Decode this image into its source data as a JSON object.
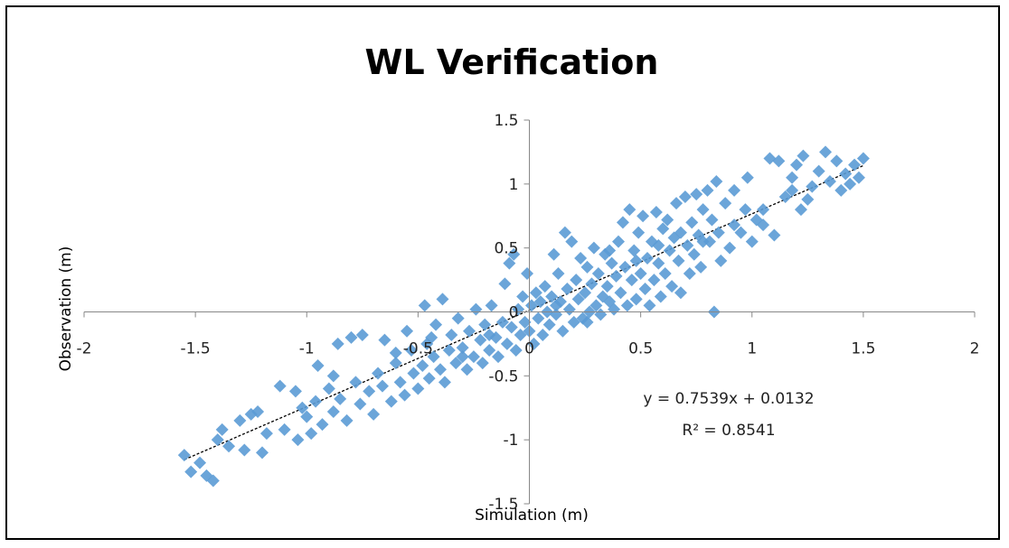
{
  "chart_data": {
    "type": "scatter",
    "title": "WL Verification",
    "xlabel": "Simulation (m)",
    "ylabel": "Observation (m)",
    "xlim": [
      -2,
      2
    ],
    "ylim": [
      -1.5,
      1.5
    ],
    "x_ticks": [
      "-2",
      "-1.5",
      "-1",
      "-0.5",
      "0",
      "0.5",
      "1",
      "1.5",
      "2"
    ],
    "y_ticks": [
      "-1.5",
      "-1",
      "-0.5",
      "0",
      "0.5",
      "1",
      "1.5"
    ],
    "grid": false,
    "marker_color": "#5b9bd5",
    "trendline": {
      "slope": 0.7539,
      "intercept": 0.0132,
      "equation": "y = 0.7539x + 0.0132",
      "r2": "R² = 0.8541"
    },
    "points": [
      [
        -1.55,
        -1.12
      ],
      [
        -1.52,
        -1.25
      ],
      [
        -1.48,
        -1.18
      ],
      [
        -1.45,
        -1.28
      ],
      [
        -1.42,
        -1.32
      ],
      [
        -1.4,
        -1.0
      ],
      [
        -1.38,
        -0.92
      ],
      [
        -1.35,
        -1.05
      ],
      [
        -1.3,
        -0.85
      ],
      [
        -1.28,
        -1.08
      ],
      [
        -1.22,
        -0.78
      ],
      [
        -1.2,
        -1.1
      ],
      [
        -1.18,
        -0.95
      ],
      [
        -1.12,
        -0.58
      ],
      [
        -1.1,
        -0.92
      ],
      [
        -1.05,
        -0.62
      ],
      [
        -1.04,
        -1.0
      ],
      [
        -1.02,
        -0.75
      ],
      [
        -1.0,
        -0.82
      ],
      [
        -0.98,
        -0.95
      ],
      [
        -0.96,
        -0.7
      ],
      [
        -0.95,
        -0.42
      ],
      [
        -0.93,
        -0.88
      ],
      [
        -0.9,
        -0.6
      ],
      [
        -0.88,
        -0.78
      ],
      [
        -0.86,
        -0.25
      ],
      [
        -0.85,
        -0.68
      ],
      [
        -0.82,
        -0.85
      ],
      [
        -0.8,
        -0.2
      ],
      [
        -0.78,
        -0.55
      ],
      [
        -0.76,
        -0.72
      ],
      [
        -0.75,
        -0.18
      ],
      [
        -0.72,
        -0.62
      ],
      [
        -0.7,
        -0.8
      ],
      [
        -0.68,
        -0.48
      ],
      [
        -0.66,
        -0.58
      ],
      [
        -0.65,
        -0.22
      ],
      [
        -0.62,
        -0.7
      ],
      [
        -0.6,
        -0.4
      ],
      [
        -0.58,
        -0.55
      ],
      [
        -0.56,
        -0.65
      ],
      [
        -0.55,
        -0.15
      ],
      [
        -0.53,
        -0.3
      ],
      [
        -0.52,
        -0.48
      ],
      [
        -0.5,
        -0.6
      ],
      [
        -0.48,
        -0.42
      ],
      [
        -0.47,
        0.05
      ],
      [
        -0.46,
        -0.25
      ],
      [
        -0.45,
        -0.52
      ],
      [
        -0.43,
        -0.35
      ],
      [
        -0.42,
        -0.1
      ],
      [
        -0.4,
        -0.45
      ],
      [
        -0.39,
        0.1
      ],
      [
        -0.38,
        -0.55
      ],
      [
        -0.36,
        -0.3
      ],
      [
        -0.35,
        -0.18
      ],
      [
        -0.33,
        -0.4
      ],
      [
        -0.32,
        -0.05
      ],
      [
        -0.3,
        -0.28
      ],
      [
        -0.28,
        -0.45
      ],
      [
        -0.27,
        -0.15
      ],
      [
        -0.25,
        -0.35
      ],
      [
        -0.24,
        0.02
      ],
      [
        -0.22,
        -0.22
      ],
      [
        -0.21,
        -0.4
      ],
      [
        -0.2,
        -0.1
      ],
      [
        -0.18,
        -0.3
      ],
      [
        -0.17,
        0.05
      ],
      [
        -0.15,
        -0.2
      ],
      [
        -0.14,
        -0.35
      ],
      [
        -0.12,
        -0.08
      ],
      [
        -0.11,
        0.22
      ],
      [
        -0.1,
        -0.25
      ],
      [
        -0.09,
        0.38
      ],
      [
        -0.08,
        -0.12
      ],
      [
        -0.07,
        0.45
      ],
      [
        -0.06,
        -0.3
      ],
      [
        -0.05,
        0.02
      ],
      [
        -0.04,
        -0.18
      ],
      [
        -0.03,
        0.12
      ],
      [
        -0.02,
        -0.08
      ],
      [
        -0.01,
        0.3
      ],
      [
        0.0,
        -0.15
      ],
      [
        0.01,
        0.05
      ],
      [
        0.02,
        -0.25
      ],
      [
        0.03,
        0.15
      ],
      [
        0.04,
        -0.05
      ],
      [
        0.05,
        0.08
      ],
      [
        0.06,
        -0.18
      ],
      [
        0.07,
        0.2
      ],
      [
        0.08,
        0.0
      ],
      [
        0.09,
        -0.1
      ],
      [
        0.1,
        0.12
      ],
      [
        0.11,
        0.45
      ],
      [
        0.12,
        -0.02
      ],
      [
        0.13,
        0.3
      ],
      [
        0.14,
        0.08
      ],
      [
        0.15,
        -0.15
      ],
      [
        0.16,
        0.62
      ],
      [
        0.17,
        0.18
      ],
      [
        0.18,
        0.02
      ],
      [
        0.19,
        0.55
      ],
      [
        0.2,
        -0.08
      ],
      [
        0.21,
        0.25
      ],
      [
        0.22,
        0.1
      ],
      [
        0.23,
        0.42
      ],
      [
        0.24,
        -0.05
      ],
      [
        0.25,
        0.15
      ],
      [
        0.26,
        0.35
      ],
      [
        0.27,
        0.0
      ],
      [
        0.28,
        0.22
      ],
      [
        0.29,
        0.5
      ],
      [
        0.3,
        0.05
      ],
      [
        0.31,
        0.3
      ],
      [
        0.32,
        -0.02
      ],
      [
        0.33,
        0.12
      ],
      [
        0.34,
        0.45
      ],
      [
        0.35,
        0.2
      ],
      [
        0.36,
        0.08
      ],
      [
        0.37,
        0.38
      ],
      [
        0.38,
        0.02
      ],
      [
        0.39,
        0.28
      ],
      [
        0.4,
        0.55
      ],
      [
        0.41,
        0.15
      ],
      [
        0.42,
        0.7
      ],
      [
        0.43,
        0.35
      ],
      [
        0.44,
        0.05
      ],
      [
        0.45,
        0.8
      ],
      [
        0.46,
        0.25
      ],
      [
        0.47,
        0.48
      ],
      [
        0.48,
        0.1
      ],
      [
        0.49,
        0.62
      ],
      [
        0.5,
        0.3
      ],
      [
        0.51,
        0.75
      ],
      [
        0.52,
        0.18
      ],
      [
        0.53,
        0.42
      ],
      [
        0.54,
        0.05
      ],
      [
        0.55,
        0.55
      ],
      [
        0.56,
        0.25
      ],
      [
        0.57,
        0.78
      ],
      [
        0.58,
        0.38
      ],
      [
        0.59,
        0.12
      ],
      [
        0.6,
        0.65
      ],
      [
        0.61,
        0.3
      ],
      [
        0.62,
        0.72
      ],
      [
        0.63,
        0.48
      ],
      [
        0.64,
        0.2
      ],
      [
        0.65,
        0.58
      ],
      [
        0.66,
        0.85
      ],
      [
        0.67,
        0.4
      ],
      [
        0.68,
        0.15
      ],
      [
        0.7,
        0.9
      ],
      [
        0.71,
        0.52
      ],
      [
        0.72,
        0.3
      ],
      [
        0.73,
        0.7
      ],
      [
        0.74,
        0.45
      ],
      [
        0.75,
        0.92
      ],
      [
        0.76,
        0.6
      ],
      [
        0.77,
        0.35
      ],
      [
        0.78,
        0.8
      ],
      [
        0.8,
        0.95
      ],
      [
        0.81,
        0.55
      ],
      [
        0.82,
        0.72
      ],
      [
        0.83,
        0.0
      ],
      [
        0.84,
        1.02
      ],
      [
        0.85,
        0.62
      ],
      [
        0.86,
        0.4
      ],
      [
        0.88,
        0.85
      ],
      [
        0.9,
        0.5
      ],
      [
        0.92,
        0.95
      ],
      [
        0.95,
        0.62
      ],
      [
        0.97,
        0.8
      ],
      [
        0.98,
        1.05
      ],
      [
        1.0,
        0.55
      ],
      [
        1.02,
        0.72
      ],
      [
        1.05,
        0.68
      ],
      [
        1.08,
        1.2
      ],
      [
        1.1,
        0.6
      ],
      [
        1.12,
        1.18
      ],
      [
        1.15,
        0.9
      ],
      [
        1.18,
        1.05
      ],
      [
        1.2,
        1.15
      ],
      [
        1.22,
        0.8
      ],
      [
        1.23,
        1.22
      ],
      [
        1.25,
        0.88
      ],
      [
        1.27,
        0.98
      ],
      [
        1.3,
        1.1
      ],
      [
        1.33,
        1.25
      ],
      [
        1.35,
        1.02
      ],
      [
        1.38,
        1.18
      ],
      [
        1.4,
        0.95
      ],
      [
        1.42,
        1.08
      ],
      [
        1.44,
        1.0
      ],
      [
        1.46,
        1.15
      ],
      [
        1.48,
        1.05
      ],
      [
        1.5,
        1.2
      ],
      [
        -1.25,
        -0.8
      ],
      [
        -0.88,
        -0.5
      ],
      [
        -0.6,
        -0.32
      ],
      [
        -0.44,
        -0.2
      ],
      [
        -0.3,
        -0.35
      ],
      [
        -0.18,
        -0.18
      ],
      [
        0.12,
        0.05
      ],
      [
        0.26,
        -0.08
      ],
      [
        0.36,
        0.48
      ],
      [
        0.48,
        0.4
      ],
      [
        0.58,
        0.52
      ],
      [
        0.68,
        0.62
      ],
      [
        0.78,
        0.55
      ],
      [
        0.92,
        0.68
      ],
      [
        1.05,
        0.8
      ],
      [
        1.18,
        0.95
      ]
    ]
  }
}
